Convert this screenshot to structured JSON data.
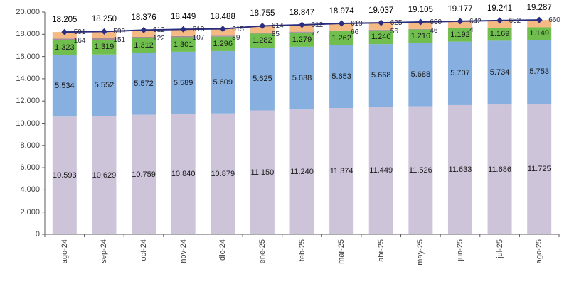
{
  "chart_data": {
    "type": "bar",
    "subtype": "stacked-bars-with-total-line",
    "categories": [
      "ago-24",
      "sep-24",
      "oct-24",
      "nov-24",
      "dic-24",
      "ene-25",
      "feb-25",
      "mar-25",
      "abr-25",
      "may-25",
      "jun-25",
      "jul-25",
      "ago-25"
    ],
    "series": [
      {
        "name": "segment-lavender",
        "color": "#CDC4DA",
        "values": [
          10593,
          10629,
          10759,
          10840,
          10879,
          11150,
          11240,
          11374,
          11449,
          11526,
          11633,
          11686,
          11725
        ],
        "label_placement": "inside"
      },
      {
        "name": "segment-blue",
        "color": "#87AFDF",
        "values": [
          5534,
          5552,
          5572,
          5589,
          5609,
          5625,
          5638,
          5653,
          5668,
          5688,
          5707,
          5734,
          5753
        ],
        "label_placement": "inside"
      },
      {
        "name": "segment-green",
        "color": "#70BF4E",
        "values": [
          1323,
          1319,
          1312,
          1301,
          1296,
          1282,
          1279,
          1262,
          1240,
          1216,
          1192,
          1169,
          1149
        ],
        "label_placement": "inside"
      },
      {
        "name": "segment-mauve",
        "color": "#A58A98",
        "values": [
          164,
          151,
          122,
          107,
          89,
          85,
          77,
          66,
          56,
          46,
          4,
          0,
          0
        ],
        "label_placement": "side-lower"
      },
      {
        "name": "segment-orange",
        "color": "#F5B983",
        "values": [
          591,
          599,
          612,
          613,
          615,
          614,
          612,
          619,
          625,
          630,
          642,
          652,
          660
        ],
        "label_placement": "side-upper"
      }
    ],
    "line_series": {
      "name": "total-line",
      "color": "#2B2E80",
      "values": [
        18205,
        18250,
        18376,
        18449,
        18488,
        18755,
        18847,
        18974,
        19037,
        19105,
        19177,
        19241,
        19287
      ]
    },
    "ylim": [
      0,
      20000
    ],
    "y_tick_step": 2000,
    "grid": false,
    "legend_position": "none-visible",
    "axis_color": "#595959",
    "number_format": "thousands-dot"
  }
}
